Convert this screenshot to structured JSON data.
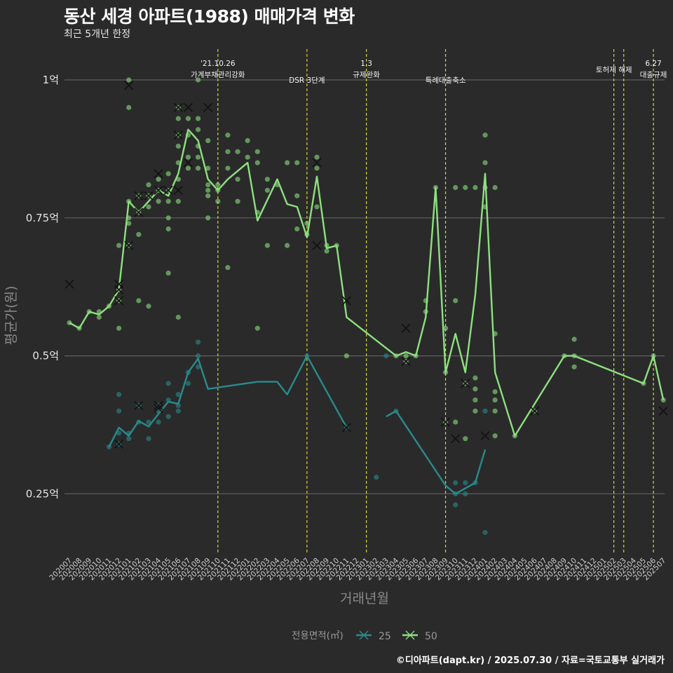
{
  "title": "동산 세경 아파트(1988) 매매가격 변화",
  "subtitle": "최근 5개년 한정",
  "caption": "©디아파트(dapt.kr) / 2025.07.30 / 자료=국토교통부 실거래가",
  "chart_data": {
    "type": "line",
    "xlabel": "거래년월",
    "ylabel": "평균가(원)",
    "y_ticks": [
      {
        "value": 0.25,
        "label": "0.25억"
      },
      {
        "value": 0.5,
        "label": "0.5억"
      },
      {
        "value": 0.75,
        "label": "0.75억"
      },
      {
        "value": 1.0,
        "label": "1억"
      }
    ],
    "ylim": [
      0.13,
      1.08
    ],
    "x_start": "202007",
    "x_end": "202507",
    "grid": "horizontal",
    "legend": {
      "title": "전용면적(㎡)",
      "position": "bottom"
    },
    "colors": {
      "25": "#2a8b8c",
      "50": "#8ee07f",
      "guide": "#d7d71c",
      "grid": "#5e5e5e",
      "cross": "#111111"
    },
    "annotations": [
      {
        "month": "202110",
        "lines": [
          "'21.10.26",
          "가계부채관리강화"
        ]
      },
      {
        "month": "202207",
        "lines": [
          "DSR 3단계"
        ]
      },
      {
        "month": "202301",
        "lines": [
          "1.3",
          "규제완화"
        ]
      },
      {
        "month": "202309",
        "lines": [
          "특례대출축소"
        ]
      },
      {
        "month": "202502",
        "lines": [
          ""
        ]
      },
      {
        "month": "202503",
        "lines": [
          "토허제 해제"
        ]
      },
      {
        "month": "202506",
        "lines": [
          "6.27",
          "대출규제"
        ]
      }
    ],
    "series": [
      {
        "name": "25",
        "line_segments": [
          [
            [
              "202011",
              0.335
            ],
            [
              "202012",
              0.37
            ],
            [
              "202101",
              0.355
            ],
            [
              "202102",
              0.382
            ],
            [
              "202103",
              0.372
            ],
            [
              "202104",
              0.395
            ],
            [
              "202105",
              0.417
            ],
            [
              "202106",
              0.413
            ],
            [
              "202107",
              0.47
            ],
            [
              "202108",
              0.495
            ],
            [
              "202109",
              0.44
            ],
            [
              "202202",
              0.453
            ],
            [
              "202204",
              0.453
            ],
            [
              "202205",
              0.43
            ],
            [
              "202207",
              0.5
            ],
            [
              "202211",
              0.37
            ]
          ],
          [
            [
              "202303",
              0.39
            ],
            [
              "202304",
              0.4
            ],
            [
              "202309",
              0.265
            ],
            [
              "202310",
              0.25
            ],
            [
              "202312",
              0.27
            ],
            [
              "202401",
              0.33
            ]
          ]
        ],
        "points": [
          [
            "202011",
            0.335
          ],
          [
            "202012",
            0.34
          ],
          [
            "202012",
            0.36
          ],
          [
            "202012",
            0.4
          ],
          [
            "202012",
            0.43
          ],
          [
            "202101",
            0.35
          ],
          [
            "202101",
            0.36
          ],
          [
            "202102",
            0.38
          ],
          [
            "202102",
            0.41
          ],
          [
            "202103",
            0.35
          ],
          [
            "202103",
            0.38
          ],
          [
            "202104",
            0.38
          ],
          [
            "202104",
            0.4
          ],
          [
            "202104",
            0.41
          ],
          [
            "202105",
            0.39
          ],
          [
            "202105",
            0.42
          ],
          [
            "202105",
            0.45
          ],
          [
            "202106",
            0.4
          ],
          [
            "202106",
            0.41
          ],
          [
            "202106",
            0.43
          ],
          [
            "202107",
            0.45
          ],
          [
            "202107",
            0.47
          ],
          [
            "202108",
            0.48
          ],
          [
            "202108",
            0.5
          ],
          [
            "202108",
            0.525
          ],
          [
            "202207",
            0.5
          ],
          [
            "202211",
            0.37
          ],
          [
            "202302",
            0.28
          ],
          [
            "202303",
            0.5
          ],
          [
            "202304",
            0.4
          ],
          [
            "202310",
            0.23
          ],
          [
            "202310",
            0.25
          ],
          [
            "202310",
            0.27
          ],
          [
            "202311",
            0.25
          ],
          [
            "202311",
            0.27
          ],
          [
            "202312",
            0.27
          ],
          [
            "202401",
            0.4
          ],
          [
            "202401",
            0.18
          ]
        ],
        "crosses": [
          [
            "202012",
            0.34
          ],
          [
            "202102",
            0.41
          ],
          [
            "202104",
            0.405
          ],
          [
            "202104",
            0.41
          ],
          [
            "202211",
            0.37
          ]
        ]
      },
      {
        "name": "50",
        "line_segments": [
          [
            [
              "202007",
              0.56
            ],
            [
              "202008",
              0.55
            ],
            [
              "202009",
              0.58
            ],
            [
              "202010",
              0.575
            ],
            [
              "202011",
              0.59
            ],
            [
              "202012",
              0.62
            ],
            [
              "202101",
              0.78
            ],
            [
              "202102",
              0.76
            ],
            [
              "202103",
              0.78
            ],
            [
              "202104",
              0.8
            ],
            [
              "202105",
              0.79
            ],
            [
              "202106",
              0.83
            ],
            [
              "202107",
              0.91
            ],
            [
              "202108",
              0.89
            ],
            [
              "202109",
              0.82
            ],
            [
              "202110",
              0.8
            ],
            [
              "202111",
              0.82
            ],
            [
              "202201",
              0.85
            ],
            [
              "202202",
              0.745
            ],
            [
              "202204",
              0.82
            ],
            [
              "202205",
              0.775
            ],
            [
              "202206",
              0.77
            ],
            [
              "202207",
              0.715
            ],
            [
              "202208",
              0.825
            ],
            [
              "202209",
              0.695
            ],
            [
              "202210",
              0.7
            ],
            [
              "202211",
              0.57
            ],
            [
              "202304",
              0.5
            ],
            [
              "202305",
              0.507
            ],
            [
              "202306",
              0.5
            ],
            [
              "202307",
              0.57
            ],
            [
              "202308",
              0.805
            ],
            [
              "202309",
              0.47
            ],
            [
              "202310",
              0.54
            ],
            [
              "202311",
              0.47
            ],
            [
              "202312",
              0.61
            ],
            [
              "202401",
              0.83
            ],
            [
              "202402",
              0.47
            ],
            [
              "202404",
              0.355
            ],
            [
              "202409",
              0.5
            ],
            [
              "202410",
              0.5
            ],
            [
              "202505",
              0.45
            ],
            [
              "202506",
              0.5
            ],
            [
              "202507",
              0.42
            ]
          ]
        ],
        "points": [
          [
            "202007",
            0.56
          ],
          [
            "202008",
            0.55
          ],
          [
            "202009",
            0.58
          ],
          [
            "202010",
            0.57
          ],
          [
            "202010",
            0.58
          ],
          [
            "202011",
            0.59
          ],
          [
            "202012",
            0.55
          ],
          [
            "202012",
            0.6
          ],
          [
            "202012",
            0.62
          ],
          [
            "202012",
            0.7
          ],
          [
            "202101",
            0.7
          ],
          [
            "202101",
            0.74
          ],
          [
            "202101",
            0.75
          ],
          [
            "202101",
            0.78
          ],
          [
            "202101",
            0.95
          ],
          [
            "202101",
            1.0
          ],
          [
            "202102",
            0.6
          ],
          [
            "202102",
            0.72
          ],
          [
            "202102",
            0.76
          ],
          [
            "202102",
            0.79
          ],
          [
            "202103",
            0.59
          ],
          [
            "202103",
            0.77
          ],
          [
            "202103",
            0.79
          ],
          [
            "202103",
            0.81
          ],
          [
            "202104",
            0.78
          ],
          [
            "202104",
            0.8
          ],
          [
            "202104",
            0.82
          ],
          [
            "202105",
            0.65
          ],
          [
            "202105",
            0.73
          ],
          [
            "202105",
            0.75
          ],
          [
            "202105",
            0.78
          ],
          [
            "202105",
            0.8
          ],
          [
            "202105",
            0.83
          ],
          [
            "202106",
            0.57
          ],
          [
            "202106",
            0.78
          ],
          [
            "202106",
            0.82
          ],
          [
            "202106",
            0.85
          ],
          [
            "202106",
            0.88
          ],
          [
            "202106",
            0.9
          ],
          [
            "202106",
            0.93
          ],
          [
            "202106",
            0.95
          ],
          [
            "202107",
            0.84
          ],
          [
            "202107",
            0.86
          ],
          [
            "202107",
            0.9
          ],
          [
            "202107",
            0.93
          ],
          [
            "202108",
            0.84
          ],
          [
            "202108",
            0.86
          ],
          [
            "202108",
            0.88
          ],
          [
            "202108",
            0.91
          ],
          [
            "202108",
            0.93
          ],
          [
            "202108",
            1.0
          ],
          [
            "202109",
            0.75
          ],
          [
            "202109",
            0.79
          ],
          [
            "202109",
            0.8
          ],
          [
            "202109",
            0.81
          ],
          [
            "202109",
            0.84
          ],
          [
            "202109",
            0.89
          ],
          [
            "202110",
            0.78
          ],
          [
            "202110",
            0.8
          ],
          [
            "202110",
            0.81
          ],
          [
            "202111",
            0.84
          ],
          [
            "202111",
            0.87
          ],
          [
            "202111",
            0.9
          ],
          [
            "202111",
            0.66
          ],
          [
            "202112",
            0.78
          ],
          [
            "202112",
            0.82
          ],
          [
            "202112",
            0.87
          ],
          [
            "202201",
            0.86
          ],
          [
            "202201",
            0.89
          ],
          [
            "202202",
            0.55
          ],
          [
            "202202",
            0.76
          ],
          [
            "202202",
            0.85
          ],
          [
            "202202",
            0.87
          ],
          [
            "202203",
            0.7
          ],
          [
            "202203",
            0.8
          ],
          [
            "202203",
            0.82
          ],
          [
            "202204",
            0.81
          ],
          [
            "202205",
            0.7
          ],
          [
            "202205",
            0.85
          ],
          [
            "202206",
            0.73
          ],
          [
            "202206",
            0.79
          ],
          [
            "202206",
            0.85
          ],
          [
            "202207",
            0.72
          ],
          [
            "202207",
            0.74
          ],
          [
            "202208",
            0.77
          ],
          [
            "202208",
            0.84
          ],
          [
            "202208",
            0.86
          ],
          [
            "202209",
            0.69
          ],
          [
            "202209",
            0.7
          ],
          [
            "202210",
            0.7
          ],
          [
            "202211",
            0.5
          ],
          [
            "202304",
            0.5
          ],
          [
            "202305",
            0.49
          ],
          [
            "202305",
            0.5
          ],
          [
            "202306",
            0.5
          ],
          [
            "202307",
            0.58
          ],
          [
            "202307",
            0.6
          ],
          [
            "202308",
            0.805
          ],
          [
            "202309",
            0.38
          ],
          [
            "202309",
            0.47
          ],
          [
            "202309",
            0.55
          ],
          [
            "202310",
            0.38
          ],
          [
            "202310",
            0.6
          ],
          [
            "202310",
            0.805
          ],
          [
            "202311",
            0.35
          ],
          [
            "202311",
            0.45
          ],
          [
            "202311",
            0.805
          ],
          [
            "202312",
            0.4
          ],
          [
            "202312",
            0.42
          ],
          [
            "202312",
            0.44
          ],
          [
            "202312",
            0.46
          ],
          [
            "202312",
            0.805
          ],
          [
            "202401",
            0.77
          ],
          [
            "202401",
            0.805
          ],
          [
            "202401",
            0.85
          ],
          [
            "202401",
            0.9
          ],
          [
            "202402",
            0.805
          ],
          [
            "202402",
            0.4
          ],
          [
            "202402",
            0.42
          ],
          [
            "202402",
            0.435
          ],
          [
            "202402",
            0.355
          ],
          [
            "202402",
            0.54
          ],
          [
            "202404",
            0.355
          ],
          [
            "202406",
            0.4
          ],
          [
            "202409",
            0.5
          ],
          [
            "202410",
            0.5
          ],
          [
            "202410",
            0.53
          ],
          [
            "202410",
            0.48
          ],
          [
            "202505",
            0.45
          ],
          [
            "202506",
            0.5
          ],
          [
            "202507",
            0.42
          ]
        ],
        "crosses": [
          [
            "202007",
            0.63
          ],
          [
            "202012",
            0.62
          ],
          [
            "202012",
            0.63
          ],
          [
            "202012",
            0.6
          ],
          [
            "202101",
            0.99
          ],
          [
            "202101",
            0.7
          ],
          [
            "202102",
            0.76
          ],
          [
            "202102",
            0.79
          ],
          [
            "202103",
            0.79
          ],
          [
            "202104",
            0.83
          ],
          [
            "202104",
            0.8
          ],
          [
            "202105",
            0.8
          ],
          [
            "202106",
            0.95
          ],
          [
            "202106",
            0.8
          ],
          [
            "202106",
            0.9
          ],
          [
            "202107",
            0.95
          ],
          [
            "202107",
            0.85
          ],
          [
            "202109",
            0.95
          ],
          [
            "202211",
            0.6
          ],
          [
            "202208",
            0.85
          ],
          [
            "202208",
            0.7
          ],
          [
            "202305",
            0.55
          ],
          [
            "202305",
            0.49
          ],
          [
            "202309",
            0.38
          ],
          [
            "202310",
            0.35
          ],
          [
            "202311",
            0.45
          ],
          [
            "202401",
            0.355
          ],
          [
            "202406",
            0.4
          ],
          [
            "202507",
            0.4
          ]
        ]
      }
    ]
  }
}
